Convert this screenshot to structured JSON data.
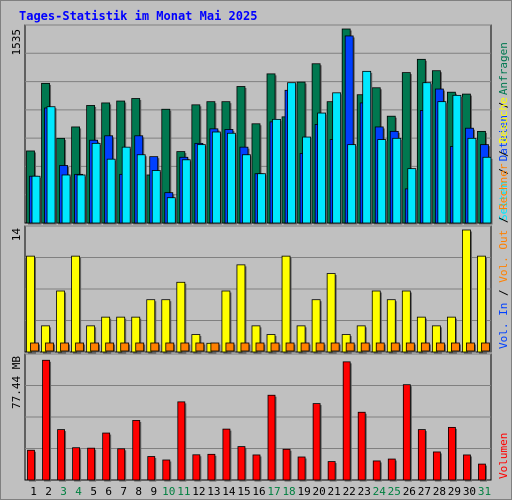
{
  "title": "Tages-Statistik im Monat Mai 2025",
  "colors": {
    "background": "#c0c0c0",
    "plot_bg": "#c0c0c0",
    "grid": "#808080",
    "title": "#0000ff",
    "anfragen": "#007850",
    "dateien": "#0040ff",
    "seiten": "#00e8ff",
    "besuche": "#ffff00",
    "rechner": "#ff8000",
    "volumen": "#ff0000",
    "weekend_label": "#008040",
    "weekday_label": "#000000"
  },
  "labels": {
    "top_max": "1535",
    "mid_max": "14",
    "bottom_max": "77.44 MB",
    "right_top": [
      "Anfragen",
      "Dateien",
      "Seiten"
    ],
    "right_top_seps": [
      "/",
      "/"
    ],
    "right_mid": [
      "Besuche",
      "Rechner",
      "Vol. Out",
      "Vol. In"
    ],
    "right_mid_seps": [
      "/",
      "/",
      "/"
    ],
    "right_bottom": [
      "Volumen"
    ],
    "right_bottom_seps": []
  },
  "chart_data": [
    {
      "type": "bar",
      "title": "Anfragen / Dateien / Seiten",
      "categories": [
        "1",
        "2",
        "3",
        "4",
        "5",
        "6",
        "7",
        "8",
        "9",
        "10",
        "11",
        "12",
        "13",
        "14",
        "15",
        "16",
        "17",
        "18",
        "19",
        "20",
        "21",
        "22",
        "23",
        "24",
        "25",
        "26",
        "27",
        "28",
        "29",
        "30",
        "31"
      ],
      "weekend_days": [
        "3",
        "4",
        "10",
        "11",
        "17",
        "18",
        "24",
        "25",
        "31"
      ],
      "ylim": [
        0,
        1535
      ],
      "series": [
        {
          "name": "Anfragen",
          "values": [
            570,
            1105,
            670,
            760,
            930,
            950,
            965,
            985,
            380,
            900,
            565,
            935,
            960,
            960,
            1080,
            785,
            1180,
            840,
            1115,
            1260,
            960,
            1535,
            1015,
            1070,
            845,
            1190,
            1295,
            1205,
            1035,
            1020,
            725
          ]
        },
        {
          "name": "Dateien",
          "values": [
            370,
            910,
            455,
            385,
            655,
            690,
            385,
            690,
            525,
            240,
            520,
            630,
            745,
            740,
            600,
            390,
            800,
            1050,
            550,
            780,
            660,
            1480,
            950,
            760,
            725,
            270,
            890,
            1060,
            605,
            750,
            620
          ]
        },
        {
          "name": "Seiten",
          "values": [
            370,
            920,
            380,
            380,
            630,
            505,
            600,
            540,
            415,
            200,
            500,
            620,
            720,
            710,
            540,
            390,
            820,
            1110,
            680,
            870,
            1030,
            620,
            1200,
            660,
            670,
            430,
            1110,
            960,
            1010,
            670,
            520
          ]
        }
      ]
    },
    {
      "type": "bar",
      "title": "Besuche / Rechner",
      "categories": [
        "1",
        "2",
        "3",
        "4",
        "5",
        "6",
        "7",
        "8",
        "9",
        "10",
        "11",
        "12",
        "13",
        "14",
        "15",
        "16",
        "17",
        "18",
        "19",
        "20",
        "21",
        "22",
        "23",
        "24",
        "25",
        "26",
        "27",
        "28",
        "29",
        "30",
        "31"
      ],
      "ylim": [
        0,
        14
      ],
      "series": [
        {
          "name": "Besuche",
          "values": [
            11,
            3,
            7,
            11,
            3,
            4,
            4,
            4,
            6,
            6,
            8,
            2,
            1,
            7,
            10,
            3,
            2,
            11,
            3,
            6,
            9,
            2,
            3,
            7,
            6,
            7,
            4,
            3,
            4,
            14,
            11
          ]
        },
        {
          "name": "Rechner",
          "values": [
            1,
            1,
            1,
            1,
            1,
            1,
            1,
            1,
            1,
            1,
            1,
            1,
            1,
            1,
            1,
            1,
            1,
            1,
            1,
            1,
            1,
            1,
            1,
            1,
            1,
            1,
            1,
            1,
            1,
            1,
            1
          ]
        }
      ]
    },
    {
      "type": "bar",
      "title": "Volumen",
      "categories": [
        "1",
        "2",
        "3",
        "4",
        "5",
        "6",
        "7",
        "8",
        "9",
        "10",
        "11",
        "12",
        "13",
        "14",
        "15",
        "16",
        "17",
        "18",
        "19",
        "20",
        "21",
        "22",
        "23",
        "24",
        "25",
        "26",
        "27",
        "28",
        "29",
        "30",
        "31"
      ],
      "ylim": [
        0,
        77.44
      ],
      "unit": "MB",
      "series": [
        {
          "name": "Volumen",
          "values": [
            18.9,
            76.0,
            32.0,
            20.5,
            20.2,
            29.8,
            19.8,
            37.8,
            14.9,
            12.7,
            49.6,
            16.0,
            16.3,
            32.3,
            21.2,
            15.9,
            53.8,
            19.5,
            14.6,
            48.5,
            11.7,
            75.0,
            43.0,
            12.1,
            13.3,
            60.5,
            32.0,
            17.8,
            33.4,
            15.9,
            10.1
          ]
        }
      ]
    }
  ]
}
